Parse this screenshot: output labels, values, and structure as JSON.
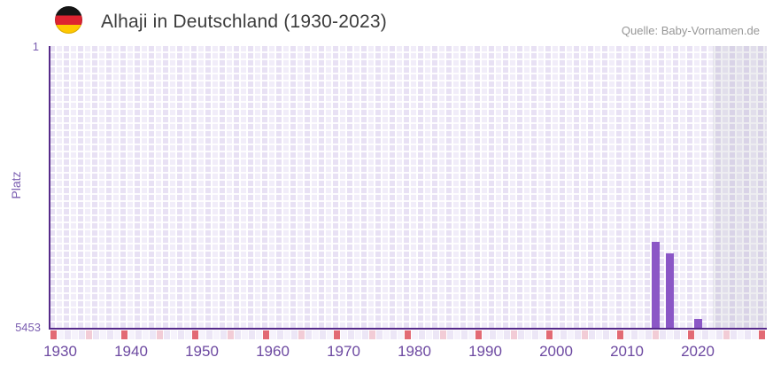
{
  "header": {
    "title": "Alhaji in Deutschland (1930-2023)",
    "flag_icon": "german-flag-circle-icon",
    "source": "Quelle: Baby-Vornamen.de"
  },
  "chart_data": {
    "type": "bar",
    "title": "Alhaji in Deutschland (1930-2023)",
    "xlabel": "",
    "ylabel": "Platz",
    "y_axis": {
      "top_tick_label": "1",
      "bottom_tick_label": "5453",
      "min": 1,
      "max": 5453,
      "inverted": true
    },
    "x_axis": {
      "range_start": 1930,
      "range_end": 2023,
      "tick_labels": [
        "1930",
        "1940",
        "1950",
        "1960",
        "1970",
        "1980",
        "1990",
        "2000",
        "2010",
        "2020"
      ]
    },
    "series": [
      {
        "name": "Platz",
        "points": [
          {
            "year": 2014,
            "rank": 3795
          },
          {
            "year": 2016,
            "rank": 4017
          },
          {
            "year": 2020,
            "rank": 5282
          }
        ]
      }
    ],
    "legend": false,
    "grid": "checkered-lavender",
    "shaded_recent_region": true,
    "colors": {
      "bar": "#8b57c6",
      "axis_line": "#562a8a",
      "x_tick_label": "#6d49a1",
      "y_tick_label": "#7a5db0",
      "strip_major_tick": "#e26a74",
      "strip_minor_tick": "#f2ccd6",
      "strip_cell_even": "#ece6f6",
      "strip_cell_odd": "#f6f3fc",
      "title_text": "#3c3c3c",
      "source_text": "#979797"
    }
  }
}
